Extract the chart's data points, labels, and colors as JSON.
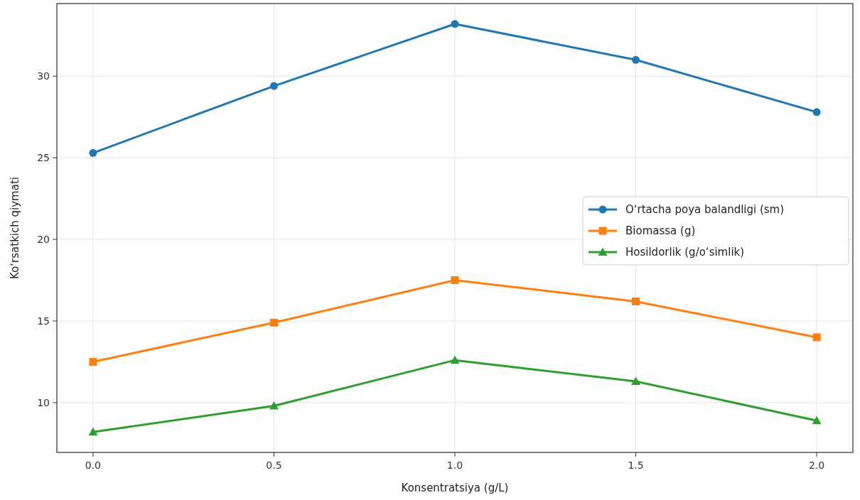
{
  "chart_data": {
    "type": "line",
    "xlabel": "Konsentratsiya (g/L)",
    "ylabel": "Koʻrsatkich qiymati",
    "x": [
      0.0,
      0.5,
      1.0,
      1.5,
      2.0
    ],
    "series": [
      {
        "name": "Oʻrtacha poya balandligi (sm)",
        "color": "#1f77b4",
        "marker": "circle",
        "values": [
          25.3,
          29.4,
          33.2,
          31.0,
          27.8
        ]
      },
      {
        "name": "Biomassa (g)",
        "color": "#ff7f0e",
        "marker": "square",
        "values": [
          12.5,
          14.9,
          17.5,
          16.2,
          14.0
        ]
      },
      {
        "name": "Hosildorlik (g/oʻsimlik)",
        "color": "#2ca02c",
        "marker": "triangle",
        "values": [
          8.2,
          9.8,
          12.6,
          11.3,
          8.9
        ]
      }
    ],
    "xlim": [
      -0.1,
      2.1
    ],
    "xticks": [
      {
        "value": 0,
        "label": "0.0"
      },
      {
        "value": 0.5,
        "label": "0.5"
      },
      {
        "value": 1,
        "label": "1.0"
      },
      {
        "value": 1.5,
        "label": "1.5"
      },
      {
        "value": 2,
        "label": "2.0"
      }
    ],
    "ylim": [
      6.95,
      34.45
    ],
    "yticks": [
      10,
      15,
      20,
      25,
      30
    ],
    "grid": true,
    "legend": "right",
    "line_style": "solid"
  }
}
